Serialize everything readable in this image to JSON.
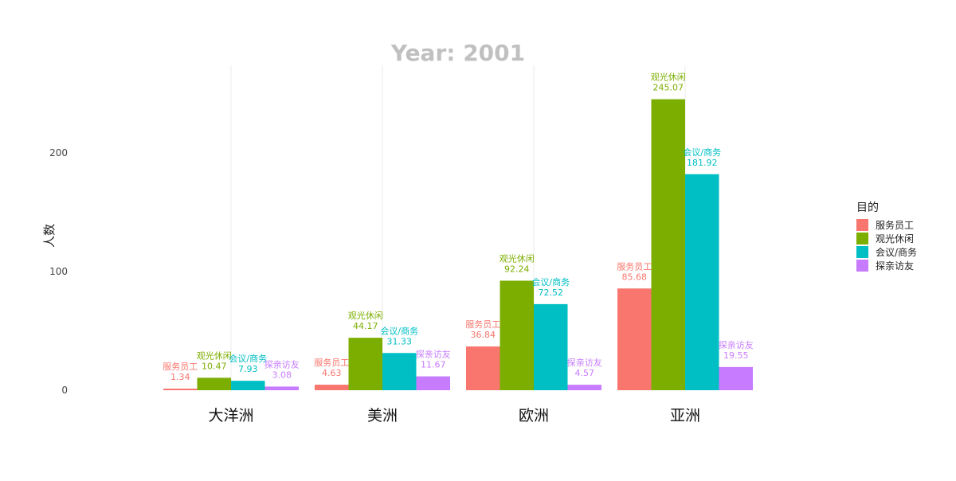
{
  "chart_data": {
    "type": "bar",
    "title": "Year: 2001",
    "xlabel": "",
    "ylabel": "人数",
    "ylim": [
      0,
      275
    ],
    "yticks": [
      0,
      100,
      200
    ],
    "grid": "vertical",
    "categories": [
      "大洋洲",
      "美洲",
      "欧洲",
      "亚洲"
    ],
    "legend": {
      "title": "目的",
      "position": "right"
    },
    "series": [
      {
        "name": "服务员工",
        "color": "#F8766D",
        "values": [
          1.34,
          4.63,
          36.84,
          85.68
        ]
      },
      {
        "name": "观光休闲",
        "color": "#7CAE00",
        "values": [
          10.47,
          44.17,
          92.24,
          245.07
        ]
      },
      {
        "name": "会议/商务",
        "color": "#00BFC4",
        "values": [
          7.93,
          31.33,
          72.52,
          181.92
        ]
      },
      {
        "name": "探亲访友",
        "color": "#C77CFF",
        "values": [
          3.08,
          11.67,
          4.57,
          19.55
        ]
      }
    ]
  }
}
